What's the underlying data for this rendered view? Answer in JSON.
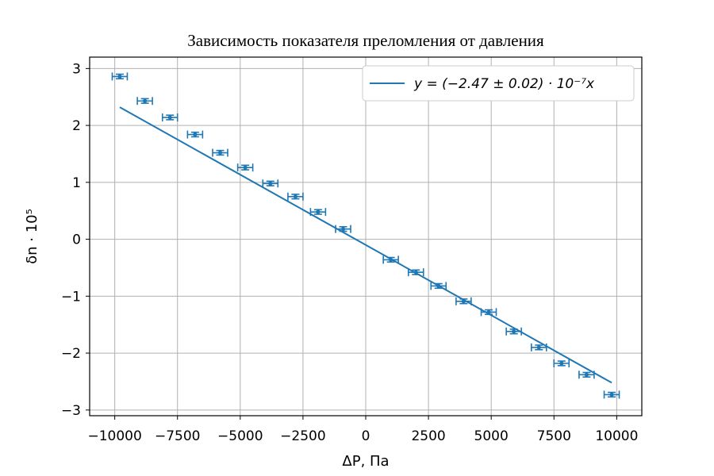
{
  "chart_data": {
    "type": "scatter",
    "title": "Зависимость показателя преломления от давления",
    "xlabel": "ΔP, Па",
    "ylabel": "δn · 10⁵",
    "xlim": [
      -11000,
      11000
    ],
    "ylim": [
      -3.1,
      3.2
    ],
    "xticks": [
      -10000,
      -7500,
      -5000,
      -2500,
      0,
      2500,
      5000,
      7500,
      10000
    ],
    "xtick_labels": [
      "−10000",
      "−7500",
      "−5000",
      "−2500",
      "0",
      "2500",
      "5000",
      "7500",
      "10000"
    ],
    "yticks": [
      -3,
      -2,
      -1,
      0,
      1,
      2,
      3
    ],
    "ytick_labels": [
      "−3",
      "−2",
      "−1",
      "0",
      "1",
      "2",
      "3"
    ],
    "grid": true,
    "legend_position": "top-right",
    "color": "#1f77b4",
    "points": [
      {
        "x": -9800,
        "y": 2.86
      },
      {
        "x": -8800,
        "y": 2.43
      },
      {
        "x": -7800,
        "y": 2.14
      },
      {
        "x": -6800,
        "y": 1.84
      },
      {
        "x": -5800,
        "y": 1.52
      },
      {
        "x": -4800,
        "y": 1.26
      },
      {
        "x": -3800,
        "y": 0.98
      },
      {
        "x": -2800,
        "y": 0.75
      },
      {
        "x": -1900,
        "y": 0.48
      },
      {
        "x": -900,
        "y": 0.18
      },
      {
        "x": 1000,
        "y": -0.36
      },
      {
        "x": 2000,
        "y": -0.58
      },
      {
        "x": 2900,
        "y": -0.82
      },
      {
        "x": 3900,
        "y": -1.09
      },
      {
        "x": 4900,
        "y": -1.28
      },
      {
        "x": 5900,
        "y": -1.62
      },
      {
        "x": 6900,
        "y": -1.9
      },
      {
        "x": 7800,
        "y": -2.18
      },
      {
        "x": 8800,
        "y": -2.38
      },
      {
        "x": 9800,
        "y": -2.73
      }
    ],
    "x_error": 300,
    "y_error": 0.04,
    "fit": {
      "label": "y = (−2.47 ± 0.02) · 10⁻⁷x",
      "slope": -0.000247,
      "intercept": -0.1,
      "x_range": [
        -9800,
        9800
      ]
    }
  }
}
